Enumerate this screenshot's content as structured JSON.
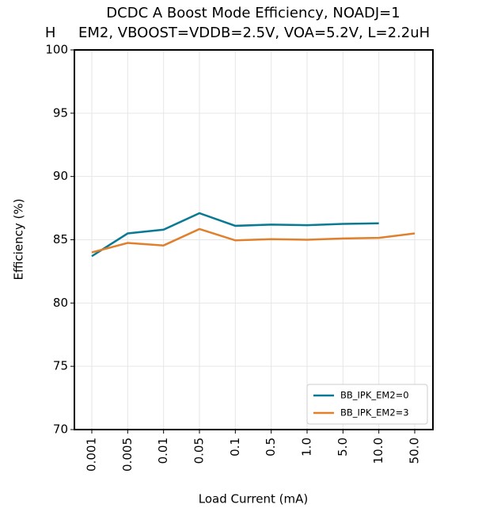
{
  "chart_data": {
    "type": "line",
    "title": "DCDC A Boost Mode Efficiency, NOADJ=1",
    "subtitle": "H     EM2, VBOOST=VDDB=2.5V, VOA=5.2V, L=2.2uH",
    "x_label": "Load Current (mA)",
    "y_label": "Efficiency (%)",
    "categories": [
      "0.001",
      "0.005",
      "0.01",
      "0.05",
      "0.1",
      "0.5",
      "1.0",
      "5.0",
      "10.0",
      "50.0"
    ],
    "series": [
      {
        "name": "BB_IPK_EM2=0",
        "color": "#0a7a94",
        "values": [
          83.7,
          85.5,
          85.8,
          87.1,
          86.1,
          86.2,
          86.15,
          86.25,
          86.3,
          null
        ]
      },
      {
        "name": "BB_IPK_EM2=3",
        "color": "#e07f2c",
        "values": [
          84.0,
          84.75,
          84.55,
          85.85,
          84.95,
          85.05,
          85.0,
          85.1,
          85.15,
          85.5
        ]
      }
    ],
    "ylim": [
      70,
      100
    ],
    "yticks": [
      70,
      75,
      80,
      85,
      90,
      95,
      100
    ],
    "grid": true,
    "legend": "lower right"
  }
}
